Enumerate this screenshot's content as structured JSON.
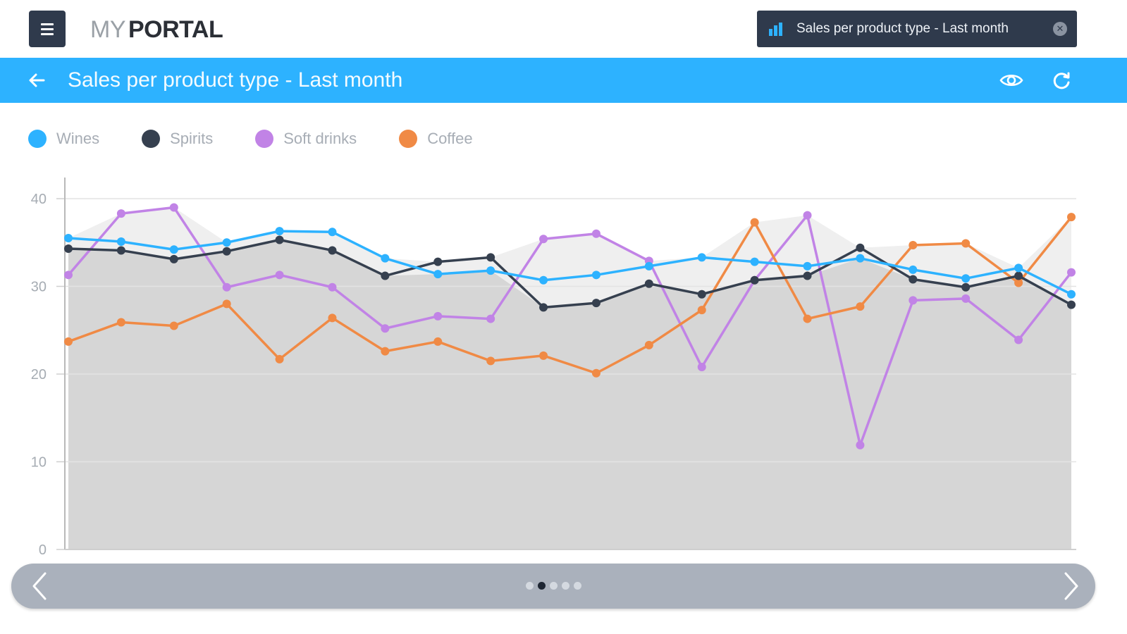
{
  "header": {
    "logo_my": "MY",
    "logo_portal": "PORTAL",
    "report_selector": "Sales per product type - Last month",
    "menu_icon": "hamburger-menu-icon",
    "report_icon": "bar-chart-icon",
    "clear_icon": "close-circle-icon"
  },
  "titlebar": {
    "title": "Sales per product type - Last month",
    "back_icon": "arrow-left-icon",
    "view_icon": "eye-icon",
    "refresh_icon": "refresh-icon"
  },
  "colors": {
    "accent_blue": "#2db2ff",
    "dark": "#2f3a4c",
    "wines": "#2db2ff",
    "spirits": "#36404f",
    "soft_drinks": "#c183e6",
    "coffee": "#f08a45"
  },
  "chart_data": {
    "type": "line",
    "ylim": [
      0,
      40
    ],
    "yticks": [
      "0",
      "10",
      "20",
      "30",
      "40"
    ],
    "x": [
      1,
      2,
      3,
      4,
      5,
      6,
      7,
      8,
      9,
      10,
      11,
      12,
      13,
      14,
      15,
      16,
      17,
      18,
      19,
      20
    ],
    "legend_position": "top-left",
    "grid": true,
    "series": [
      {
        "name": "Wines",
        "color": "#2db2ff",
        "values": [
          35.5,
          35.1,
          34.2,
          35.0,
          36.3,
          36.2,
          33.2,
          31.4,
          31.8,
          30.7,
          31.3,
          32.3,
          33.3,
          32.8,
          32.3,
          33.2,
          31.9,
          30.9,
          32.1,
          29.1
        ]
      },
      {
        "name": "Spirits",
        "color": "#36404f",
        "values": [
          34.3,
          34.1,
          33.1,
          34.0,
          35.3,
          34.1,
          31.2,
          32.8,
          33.3,
          27.6,
          28.1,
          30.3,
          29.1,
          30.7,
          31.2,
          34.4,
          30.8,
          29.9,
          31.2,
          27.9
        ]
      },
      {
        "name": "Soft drinks",
        "color": "#c183e6",
        "values": [
          31.3,
          38.3,
          39.0,
          29.9,
          31.3,
          29.9,
          25.2,
          26.6,
          26.3,
          35.4,
          36.0,
          32.9,
          20.8,
          30.7,
          38.1,
          11.9,
          28.4,
          28.6,
          23.9,
          31.6
        ]
      },
      {
        "name": "Coffee",
        "color": "#f08a45",
        "values": [
          23.7,
          25.9,
          25.5,
          28.0,
          21.7,
          26.4,
          22.6,
          23.7,
          21.5,
          22.1,
          20.1,
          23.3,
          27.3,
          37.3,
          26.3,
          27.7,
          34.7,
          34.9,
          30.4,
          37.9
        ]
      }
    ]
  },
  "pager": {
    "prev_icon": "chevron-left-icon",
    "next_icon": "chevron-right-icon",
    "pages": 5,
    "current_page": 2
  }
}
